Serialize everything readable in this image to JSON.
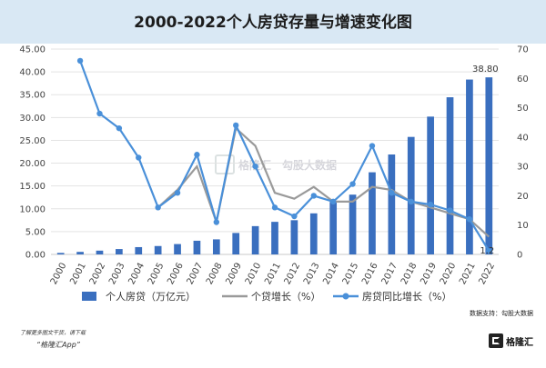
{
  "title": "2000-2022个人房贷存量与增速变化图",
  "source": "数据支持：勾股大数据",
  "footer": {
    "hint": "了解更多图文干货，请下载",
    "app": "“格隆汇App”",
    "logo_text": "格隆汇"
  },
  "watermark": {
    "brand_a": "格隆汇",
    "brand_b": "勾股大数据"
  },
  "chart_data": {
    "type": "bar",
    "categories": [
      "2000",
      "2001",
      "2002",
      "2003",
      "2004",
      "2005",
      "2006",
      "2007",
      "2008",
      "2009",
      "2010",
      "2011",
      "2012",
      "2013",
      "2014",
      "2015",
      "2016",
      "2017",
      "2018",
      "2019",
      "2020",
      "2021",
      "2022"
    ],
    "left_axis": {
      "ticks": [
        "0.00",
        "5.00",
        "10.00",
        "15.00",
        "20.00",
        "25.00",
        "30.00",
        "35.00",
        "40.00",
        "45.00"
      ],
      "ylim": [
        0,
        45
      ]
    },
    "right_axis": {
      "ticks": [
        "0",
        "10",
        "20",
        "30",
        "40",
        "50",
        "60",
        "70"
      ],
      "ylim": [
        0,
        70
      ]
    },
    "series": [
      {
        "name": "个人房贷（万亿元）",
        "type": "bar",
        "axis": "left",
        "color": "#3a6fbf",
        "values": [
          0.33,
          0.56,
          0.83,
          1.18,
          1.6,
          1.84,
          2.27,
          3.0,
          3.3,
          4.7,
          6.2,
          7.14,
          7.5,
          9.0,
          11.52,
          13.1,
          18.0,
          21.9,
          25.75,
          30.2,
          34.44,
          38.32,
          38.8
        ]
      },
      {
        "name": "个贷增长（%）",
        "type": "line",
        "axis": "right",
        "color": "#9a9a9a",
        "values": [
          null,
          null,
          null,
          null,
          null,
          16,
          22,
          30,
          11,
          43,
          37,
          21,
          19,
          23,
          18,
          18,
          23,
          22,
          18,
          16,
          14,
          12,
          6
        ]
      },
      {
        "name": "房贷同比增长（%）",
        "type": "line",
        "axis": "right",
        "color": "#4a90d9",
        "values": [
          null,
          66,
          48,
          43,
          33,
          16,
          21,
          34,
          11,
          44,
          30,
          16,
          13,
          20,
          18,
          24,
          37,
          21,
          18,
          17,
          15,
          12,
          1.2
        ]
      }
    ],
    "data_labels": {
      "last_bar": "38.80",
      "last_line": "1.2"
    },
    "grid": true,
    "legend_position": "bottom"
  }
}
